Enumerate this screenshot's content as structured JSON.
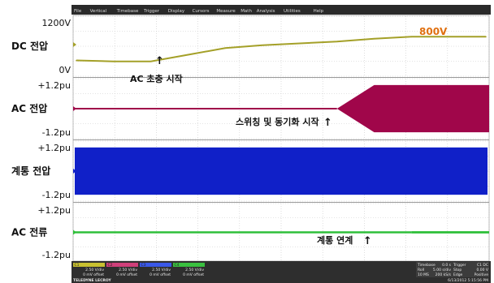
{
  "menu": [
    "File",
    "Vertical",
    "Timebase",
    "Trigger",
    "Display",
    "Cursors",
    "Measure",
    "Math",
    "Analysis",
    "Utilities",
    "Help"
  ],
  "panels": [
    {
      "name": "DC 전압",
      "top_label": "1200V",
      "bottom_label": "0V"
    },
    {
      "name": "AC 전압",
      "top_label": "+1.2pu",
      "bottom_label": "-1.2pu"
    },
    {
      "name": "계통 전압",
      "top_label": "+1.2pu",
      "bottom_label": "-1.2pu"
    },
    {
      "name": "AC 전류",
      "top_label": "+1.2pu",
      "bottom_label": "-1.2pu"
    }
  ],
  "annotations": {
    "dc_level": "800V",
    "ac_charge": "AC 초충 시작",
    "switching": "스위칭 및 동기화 시작",
    "grid_tie": "계통 연계"
  },
  "arrow_glyph": "↑",
  "colors": {
    "dc": "#a4a028",
    "ac": "#a0064a",
    "grid": "#1020c8",
    "current": "#2fbf3a",
    "annotation_orange": "#e07010",
    "gridline": "#c8c8c8",
    "bottom_bar": "#2e2e2e"
  },
  "bottom_bar": {
    "channels": [
      {
        "tag": "C1",
        "scale": "2.50 V/div",
        "offset": "0 mV offset",
        "color": "#c8c030"
      },
      {
        "tag": "C2",
        "scale": "2.50 V/div",
        "offset": "0 mV offset",
        "color": "#d0407a"
      },
      {
        "tag": "C3",
        "scale": "2.50 V/div",
        "offset": "0 mV offset",
        "color": "#3a58e8"
      },
      {
        "tag": "C4",
        "scale": "2.50 V/div",
        "offset": "0 mV offset",
        "color": "#3ac040"
      }
    ],
    "brand": "TELEDYNE LECROY",
    "timebase": {
      "label": "Timebase",
      "value": "0.0 s"
    },
    "trigger": {
      "label": "Trigger",
      "value": "C1 DC"
    },
    "roll": {
      "label": "Roll",
      "value": "5.00 s/div"
    },
    "stop": {
      "label": "Stop",
      "value": "0.00 V"
    },
    "samples": {
      "label": "10 MS",
      "value": "200 kS/s"
    },
    "edge": {
      "label": "Edge",
      "value": "Positive"
    },
    "date": "6/13/2012 5:15:56 PM"
  },
  "chart_data": {
    "type": "line",
    "x": [
      0,
      1,
      2,
      3,
      4,
      5,
      6,
      7,
      8,
      9,
      10,
      11
    ],
    "series": [
      {
        "name": "DC 전압",
        "values": [
          300,
          280,
          280,
          420,
          560,
          620,
          660,
          700,
          760,
          800,
          800,
          800
        ]
      },
      {
        "name": "AC 전압",
        "values": [
          0,
          0,
          0,
          0,
          0,
          0,
          0,
          0,
          1.0,
          1.0,
          1.0,
          1.0
        ]
      },
      {
        "name": "계통 전압",
        "values": [
          1.0,
          1.0,
          1.0,
          1.0,
          1.0,
          1.0,
          1.0,
          1.0,
          1.0,
          1.0,
          1.0,
          1.0
        ]
      },
      {
        "name": "AC 전류",
        "values": [
          0,
          0,
          0,
          0,
          0,
          0,
          0,
          0,
          0,
          0.05,
          0.05,
          0.05
        ]
      }
    ],
    "ylim_dc": [
      0,
      1200
    ],
    "ylim_pu": [
      -1.2,
      1.2
    ]
  }
}
